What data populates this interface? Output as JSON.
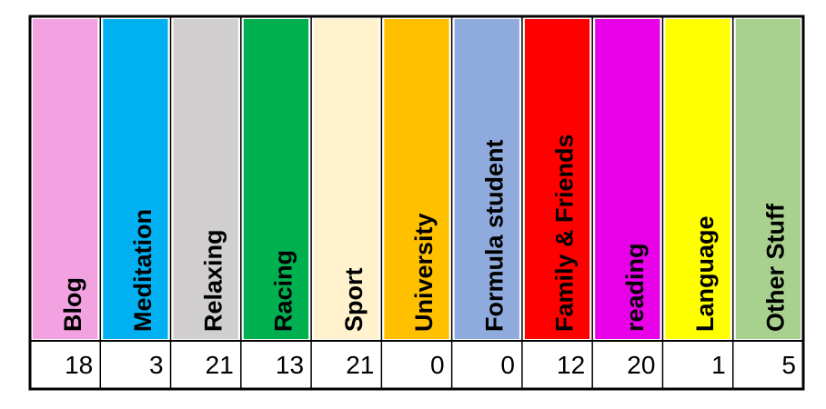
{
  "table": {
    "columns": [
      {
        "label": "Blog",
        "color": "#f2a2e0",
        "value": "18"
      },
      {
        "label": "Meditation",
        "color": "#00b0f0",
        "value": "3"
      },
      {
        "label": "Relaxing",
        "color": "#d0cece",
        "value": "21"
      },
      {
        "label": "Racing",
        "color": "#00b050",
        "value": "13"
      },
      {
        "label": "Sport",
        "color": "#fff2cc",
        "value": "21"
      },
      {
        "label": "University",
        "color": "#ffc000",
        "value": "0"
      },
      {
        "label": "Formula student",
        "color": "#8faadc",
        "value": "0"
      },
      {
        "label": "Family & Friends",
        "color": "#ff0000",
        "value": "12"
      },
      {
        "label": "reading",
        "color": "#e800e8",
        "value": "20"
      },
      {
        "label": "Language",
        "color": "#ffff00",
        "value": "1"
      },
      {
        "label": "Other Stuff",
        "color": "#a9d18e",
        "value": "5"
      }
    ]
  }
}
